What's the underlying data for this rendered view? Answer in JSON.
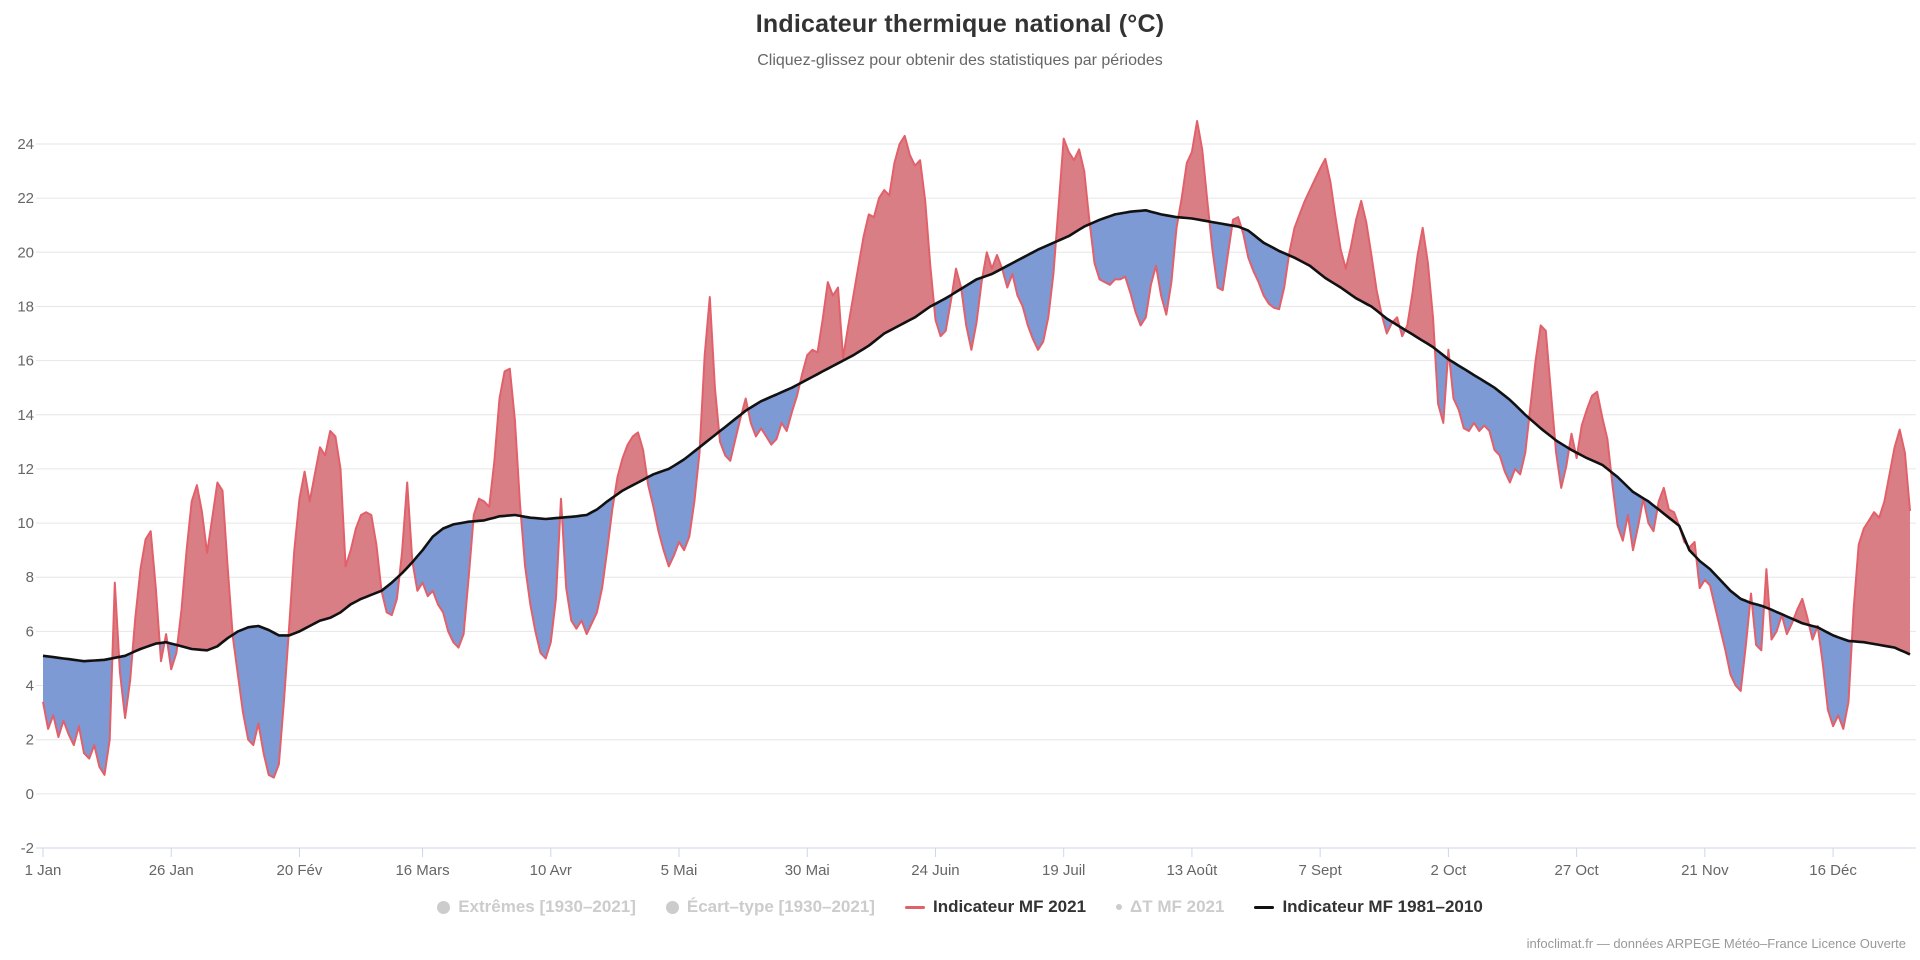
{
  "header": {
    "title": "Indicateur thermique national (°C)",
    "subtitle": "Cliquez-glissez pour obtenir des statistiques par périodes"
  },
  "footer": {
    "credit": "infoclimat.fr — données ARPEGE Météo–France Licence Ouverte"
  },
  "legend": {
    "items": [
      {
        "label": "Extrêmes [1930–2021]",
        "marker": "circle",
        "color": "#cccccc",
        "text_color": "#cccccc",
        "enabled": false
      },
      {
        "label": "Écart–type [1930–2021]",
        "marker": "circle",
        "color": "#cccccc",
        "text_color": "#cccccc",
        "enabled": false
      },
      {
        "label": "Indicateur MF 2021",
        "marker": "line",
        "color": "#e2606a",
        "text_color": "#333333",
        "enabled": true
      },
      {
        "label": "ΔT MF 2021",
        "marker": "dot",
        "color": "#cccccc",
        "text_color": "#cccccc",
        "enabled": false
      },
      {
        "label": "Indicateur MF 1981–2010",
        "marker": "line",
        "color": "#111111",
        "text_color": "#333333",
        "enabled": true
      }
    ]
  },
  "chart_data": {
    "type": "line",
    "title": "Indicateur thermique national (°C)",
    "xlabel": "",
    "ylabel": "",
    "ylim": [
      -2,
      24
    ],
    "grid": true,
    "legend_position": "bottom",
    "colors": {
      "red_line": "#e2606a",
      "black_line": "#111111",
      "fill_above_normal": "#da7e86",
      "fill_below_normal": "#7e9ad4",
      "gridline": "#e6e6e6",
      "axis_line": "#ccd6eb",
      "tick_label": "#666666"
    },
    "y_ticks": [
      -2,
      0,
      2,
      4,
      6,
      8,
      10,
      12,
      14,
      16,
      18,
      20,
      22,
      24
    ],
    "x_ticks": [
      {
        "day": 0,
        "label": "1 Jan"
      },
      {
        "day": 25,
        "label": "26 Jan"
      },
      {
        "day": 50,
        "label": "20 Fév"
      },
      {
        "day": 74,
        "label": "16 Mars"
      },
      {
        "day": 99,
        "label": "10 Avr"
      },
      {
        "day": 124,
        "label": "5 Mai"
      },
      {
        "day": 149,
        "label": "30 Mai"
      },
      {
        "day": 174,
        "label": "24 Juin"
      },
      {
        "day": 199,
        "label": "19 Juil"
      },
      {
        "day": 224,
        "label": "13 Août"
      },
      {
        "day": 249,
        "label": "7 Sept"
      },
      {
        "day": 274,
        "label": "2 Oct"
      },
      {
        "day": 299,
        "label": "27 Oct"
      },
      {
        "day": 324,
        "label": "21 Nov"
      },
      {
        "day": 349,
        "label": "16 Déc"
      }
    ],
    "series": [
      {
        "name": "Indicateur MF 2021",
        "kind": "daily_values_from_jan1",
        "values": [
          3.4,
          2.4,
          2.9,
          2.1,
          2.7,
          2.2,
          1.8,
          2.5,
          1.5,
          1.3,
          1.8,
          1.0,
          0.7,
          2.0,
          7.8,
          4.5,
          2.8,
          4.2,
          6.5,
          8.3,
          9.4,
          9.7,
          7.6,
          4.9,
          5.9,
          4.6,
          5.2,
          6.8,
          9.0,
          10.8,
          11.4,
          10.4,
          8.9,
          10.2,
          11.5,
          11.2,
          8.4,
          5.8,
          4.4,
          3.0,
          2.0,
          1.8,
          2.6,
          1.5,
          0.7,
          0.6,
          1.1,
          3.5,
          6.2,
          9.0,
          10.9,
          11.9,
          10.8,
          11.8,
          12.8,
          12.5,
          13.4,
          13.2,
          12.0,
          8.4,
          9.0,
          9.8,
          10.3,
          10.4,
          10.3,
          9.2,
          7.5,
          6.7,
          6.6,
          7.2,
          8.9,
          11.5,
          8.6,
          7.5,
          7.8,
          7.3,
          7.5,
          7.0,
          6.7,
          6.0,
          5.6,
          5.4,
          5.9,
          8.0,
          10.3,
          10.9,
          10.8,
          10.6,
          12.3,
          14.6,
          15.6,
          15.7,
          13.8,
          10.7,
          8.4,
          7.0,
          6.0,
          5.2,
          5.0,
          5.6,
          7.2,
          10.9,
          7.6,
          6.4,
          6.1,
          6.4,
          5.9,
          6.3,
          6.7,
          7.6,
          9.0,
          10.5,
          11.7,
          12.4,
          12.9,
          13.2,
          13.35,
          12.7,
          11.4,
          10.6,
          9.7,
          9.0,
          8.4,
          8.8,
          9.3,
          9.0,
          9.5,
          10.8,
          12.6,
          16.2,
          18.35,
          15.0,
          13.0,
          12.5,
          12.3,
          13.1,
          13.9,
          14.6,
          13.7,
          13.2,
          13.5,
          13.2,
          12.9,
          13.1,
          13.7,
          13.4,
          14.1,
          14.7,
          15.5,
          16.2,
          16.4,
          16.3,
          17.5,
          18.9,
          18.4,
          18.7,
          16.1,
          17.3,
          18.4,
          19.5,
          20.6,
          21.4,
          21.3,
          22.0,
          22.3,
          22.1,
          23.3,
          24.0,
          24.3,
          23.6,
          23.2,
          23.4,
          21.9,
          19.5,
          17.5,
          16.9,
          17.1,
          18.2,
          19.4,
          18.7,
          17.3,
          16.4,
          17.4,
          18.9,
          20.0,
          19.4,
          19.9,
          19.4,
          18.7,
          19.2,
          18.4,
          18.0,
          17.3,
          16.8,
          16.4,
          16.7,
          17.6,
          19.2,
          21.7,
          24.2,
          23.7,
          23.4,
          23.8,
          23.0,
          21.2,
          19.6,
          19.0,
          18.9,
          18.8,
          19.0,
          19.0,
          19.1,
          18.5,
          17.8,
          17.3,
          17.6,
          18.8,
          19.5,
          18.4,
          17.7,
          18.9,
          20.9,
          22.0,
          23.3,
          23.7,
          24.85,
          23.8,
          21.9,
          20.1,
          18.7,
          18.6,
          19.9,
          21.2,
          21.3,
          20.7,
          19.8,
          19.3,
          18.9,
          18.4,
          18.1,
          17.95,
          17.9,
          18.7,
          20.0,
          20.9,
          21.4,
          21.9,
          22.3,
          22.7,
          23.1,
          23.45,
          22.6,
          21.3,
          20.1,
          19.4,
          20.2,
          21.2,
          21.9,
          21.1,
          19.9,
          18.6,
          17.7,
          17.0,
          17.4,
          17.6,
          16.9,
          17.3,
          18.5,
          19.9,
          20.9,
          19.6,
          17.6,
          14.4,
          13.7,
          16.4,
          14.6,
          14.2,
          13.5,
          13.4,
          13.7,
          13.4,
          13.6,
          13.4,
          12.7,
          12.5,
          11.9,
          11.5,
          12.0,
          11.8,
          12.6,
          14.3,
          16.0,
          17.3,
          17.1,
          14.8,
          12.6,
          11.3,
          12.1,
          13.3,
          12.4,
          13.6,
          14.2,
          14.7,
          14.85,
          13.9,
          13.1,
          11.4,
          9.9,
          9.35,
          10.3,
          9.0,
          9.9,
          10.9,
          10.0,
          9.7,
          10.8,
          11.3,
          10.5,
          10.4,
          9.9,
          9.3,
          9.1,
          9.3,
          7.6,
          7.9,
          7.7,
          6.9,
          6.1,
          5.3,
          4.4,
          4.0,
          3.8,
          5.5,
          7.4,
          5.5,
          5.3,
          8.3,
          5.7,
          6.0,
          6.6,
          5.9,
          6.3,
          6.8,
          7.2,
          6.5,
          5.7,
          6.2,
          4.8,
          3.1,
          2.5,
          2.9,
          2.4,
          3.4,
          6.8,
          9.2,
          9.8,
          10.1,
          10.4,
          10.2,
          10.8,
          11.8,
          12.8,
          13.45,
          12.6,
          10.45
        ]
      },
      {
        "name": "Indicateur MF 1981–2010",
        "kind": "knots_day_value",
        "knots": [
          [
            0,
            5.1
          ],
          [
            4,
            5.0
          ],
          [
            8,
            4.9
          ],
          [
            12,
            4.95
          ],
          [
            16,
            5.1
          ],
          [
            19,
            5.35
          ],
          [
            22,
            5.55
          ],
          [
            24,
            5.6
          ],
          [
            26,
            5.5
          ],
          [
            29,
            5.35
          ],
          [
            32,
            5.3
          ],
          [
            34,
            5.45
          ],
          [
            36,
            5.75
          ],
          [
            38,
            6.0
          ],
          [
            40,
            6.15
          ],
          [
            42,
            6.2
          ],
          [
            44,
            6.05
          ],
          [
            46,
            5.85
          ],
          [
            48,
            5.85
          ],
          [
            50,
            6.0
          ],
          [
            52,
            6.2
          ],
          [
            54,
            6.4
          ],
          [
            56,
            6.5
          ],
          [
            58,
            6.7
          ],
          [
            60,
            7.0
          ],
          [
            62,
            7.2
          ],
          [
            64,
            7.35
          ],
          [
            66,
            7.5
          ],
          [
            68,
            7.8
          ],
          [
            70,
            8.15
          ],
          [
            72,
            8.55
          ],
          [
            74,
            9.0
          ],
          [
            76,
            9.5
          ],
          [
            78,
            9.8
          ],
          [
            80,
            9.95
          ],
          [
            83,
            10.05
          ],
          [
            86,
            10.1
          ],
          [
            89,
            10.25
          ],
          [
            92,
            10.3
          ],
          [
            95,
            10.2
          ],
          [
            98,
            10.15
          ],
          [
            101,
            10.2
          ],
          [
            104,
            10.25
          ],
          [
            106,
            10.3
          ],
          [
            108,
            10.5
          ],
          [
            110,
            10.8
          ],
          [
            113,
            11.2
          ],
          [
            116,
            11.5
          ],
          [
            119,
            11.8
          ],
          [
            122,
            12.0
          ],
          [
            125,
            12.35
          ],
          [
            128,
            12.8
          ],
          [
            131,
            13.25
          ],
          [
            134,
            13.7
          ],
          [
            137,
            14.15
          ],
          [
            140,
            14.5
          ],
          [
            143,
            14.75
          ],
          [
            146,
            15.0
          ],
          [
            149,
            15.3
          ],
          [
            152,
            15.6
          ],
          [
            155,
            15.9
          ],
          [
            158,
            16.2
          ],
          [
            161,
            16.55
          ],
          [
            164,
            17.0
          ],
          [
            167,
            17.3
          ],
          [
            170,
            17.6
          ],
          [
            173,
            18.0
          ],
          [
            176,
            18.3
          ],
          [
            179,
            18.65
          ],
          [
            182,
            19.0
          ],
          [
            185,
            19.2
          ],
          [
            188,
            19.5
          ],
          [
            191,
            19.8
          ],
          [
            194,
            20.1
          ],
          [
            197,
            20.35
          ],
          [
            200,
            20.6
          ],
          [
            203,
            20.95
          ],
          [
            206,
            21.2
          ],
          [
            209,
            21.4
          ],
          [
            212,
            21.5
          ],
          [
            215,
            21.55
          ],
          [
            218,
            21.4
          ],
          [
            221,
            21.3
          ],
          [
            224,
            21.25
          ],
          [
            227,
            21.15
          ],
          [
            230,
            21.05
          ],
          [
            233,
            20.95
          ],
          [
            235,
            20.8
          ],
          [
            238,
            20.35
          ],
          [
            241,
            20.05
          ],
          [
            244,
            19.8
          ],
          [
            247,
            19.5
          ],
          [
            250,
            19.05
          ],
          [
            253,
            18.7
          ],
          [
            256,
            18.3
          ],
          [
            259,
            18.0
          ],
          [
            262,
            17.55
          ],
          [
            265,
            17.2
          ],
          [
            268,
            16.85
          ],
          [
            271,
            16.5
          ],
          [
            274,
            16.05
          ],
          [
            277,
            15.7
          ],
          [
            280,
            15.35
          ],
          [
            283,
            15.0
          ],
          [
            286,
            14.55
          ],
          [
            289,
            14.0
          ],
          [
            292,
            13.5
          ],
          [
            295,
            13.05
          ],
          [
            298,
            12.7
          ],
          [
            301,
            12.4
          ],
          [
            304,
            12.15
          ],
          [
            307,
            11.7
          ],
          [
            310,
            11.15
          ],
          [
            313,
            10.8
          ],
          [
            316,
            10.35
          ],
          [
            319,
            9.9
          ],
          [
            321,
            9.0
          ],
          [
            323,
            8.6
          ],
          [
            325,
            8.3
          ],
          [
            327,
            7.9
          ],
          [
            329,
            7.5
          ],
          [
            331,
            7.2
          ],
          [
            333,
            7.05
          ],
          [
            335,
            6.95
          ],
          [
            337,
            6.8
          ],
          [
            340,
            6.55
          ],
          [
            343,
            6.3
          ],
          [
            346,
            6.15
          ],
          [
            349,
            5.85
          ],
          [
            352,
            5.65
          ],
          [
            355,
            5.6
          ],
          [
            358,
            5.5
          ],
          [
            361,
            5.4
          ],
          [
            364,
            5.15
          ]
        ]
      }
    ]
  }
}
